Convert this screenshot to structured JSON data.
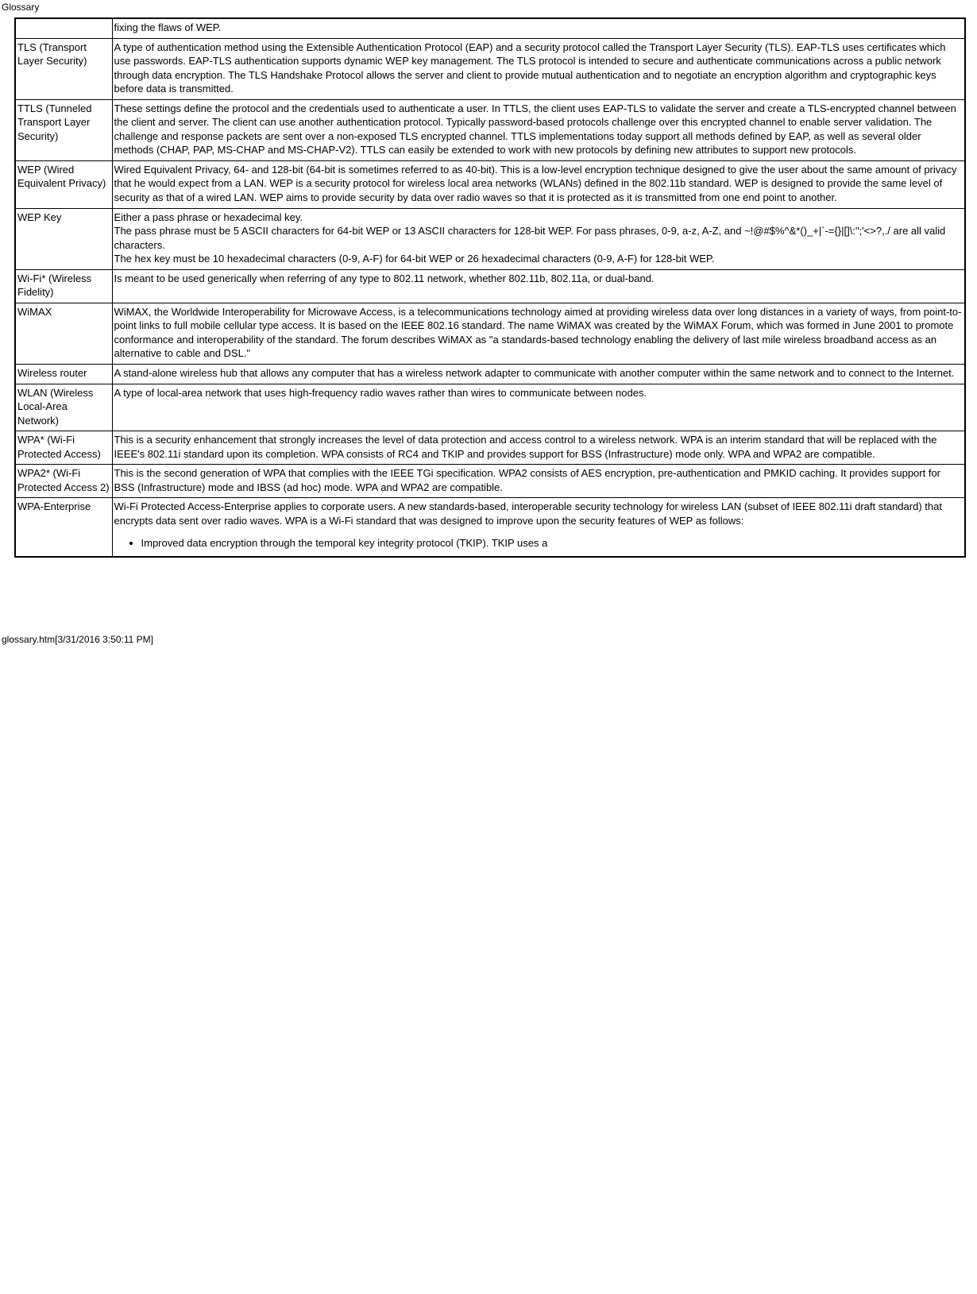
{
  "pageTitle": "Glossary",
  "footer": "glossary.htm[3/31/2016 3:50:11 PM]",
  "firstRow": {
    "term": "",
    "def": " fixing the flaws of WEP."
  },
  "rows": [
    {
      "term": "TLS (Transport Layer Security)",
      "def": "A type of authentication method using the Extensible Authentication Protocol (EAP) and a security protocol called the Transport Layer Security (TLS). EAP-TLS uses certificates which use passwords. EAP-TLS authentication supports dynamic WEP key management. The TLS protocol is intended to secure and authenticate communications across a public network through data encryption. The TLS Handshake Protocol allows the server and client to provide mutual authentication and to negotiate an encryption algorithm and cryptographic keys before data is transmitted."
    },
    {
      "term": "TTLS (Tunneled Transport Layer Security)",
      "def": "These settings define the protocol and the credentials used to authenticate a user. In TTLS, the client uses EAP-TLS to validate the server and create a TLS-encrypted channel between the client and server. The client can use another authentication protocol. Typically password-based protocols challenge over this encrypted channel to enable server validation. The challenge and response packets are sent over a non-exposed TLS encrypted channel. TTLS implementations today support all methods defined by EAP, as well as several older methods (CHAP, PAP, MS-CHAP and MS-CHAP-V2). TTLS can easily be extended to work with new protocols by defining new attributes to support new protocols."
    },
    {
      "term": "WEP (Wired Equivalent Privacy)",
      "def": "Wired Equivalent Privacy, 64- and 128-bit (64-bit is sometimes referred to as 40-bit). This is a low-level encryption technique designed to give the user about the same amount of privacy that he would expect from a LAN. WEP is a security protocol for wireless local area networks (WLANs) defined in the 802.11b standard. WEP is designed to provide the same level of security as that of a wired LAN. WEP aims to provide security by data over radio waves so that it is protected as it is transmitted from one end point to another."
    },
    {
      "term": "WEP Key",
      "def": "Either a pass phrase or hexadecimal key.\nThe pass phrase must be 5 ASCII characters for 64-bit WEP or 13 ASCII characters for 128-bit WEP. For pass phrases, 0-9, a-z, A-Z, and ~!@#$%^&*()_+|`-={}|[]\\:\";'<>?,./ are all valid characters.\nThe hex key must be 10 hexadecimal characters (0-9, A-F) for 64-bit WEP or 26 hexadecimal characters (0-9, A-F) for 128-bit WEP."
    },
    {
      "term": "Wi-Fi* (Wireless Fidelity)",
      "def": "Is meant to be used generically when referring of any type to 802.11 network, whether 802.11b, 802.11a, or dual-band."
    },
    {
      "term": "WiMAX",
      "def": "WiMAX, the Worldwide Interoperability for Microwave Access, is a telecommunications technology aimed at providing wireless data over long distances in a variety of ways, from point-to-point links to full mobile cellular type access. It is based on the IEEE 802.16 standard. The name WiMAX was created by the WiMAX Forum, which was formed in June 2001 to promote conformance and interoperability of the standard. The forum describes WiMAX as \"a standards-based technology enabling the delivery of last mile wireless broadband access as an alternative to cable and DSL.\""
    },
    {
      "term": "Wireless router",
      "def": "A stand-alone wireless hub that allows any computer that has a wireless network adapter to communicate with another computer within the same network and to connect to the Internet."
    },
    {
      "term": "WLAN (Wireless Local-Area Network)",
      "def": "A type of local-area network that uses high-frequency radio waves rather than wires to communicate between nodes."
    },
    {
      "term": "WPA* (Wi-Fi Protected Access)",
      "def": "This is a security enhancement that strongly increases the level of data protection and access control to a wireless network. WPA is an interim standard that will be replaced with the IEEE's 802.11i standard upon its completion. WPA consists of RC4 and TKIP and provides support for BSS (Infrastructure) mode only. WPA and WPA2 are compatible."
    },
    {
      "term": "WPA2* (Wi-Fi Protected Access 2)",
      "def": "This is the second generation of WPA that complies with the IEEE TGi specification. WPA2 consists of AES encryption, pre-authentication and PMKID caching. It provides support for BSS (Infrastructure) mode and IBSS (ad hoc) mode. WPA and WPA2 are compatible."
    }
  ],
  "lastRow": {
    "term": "WPA-Enterprise",
    "intro": "Wi-Fi Protected Access-Enterprise applies to corporate users. A new standards-based, interoperable security technology for wireless LAN (subset of IEEE 802.11i draft standard) that encrypts data sent over radio waves. WPA is a Wi-Fi standard that was designed to improve upon the security features of WEP as follows:",
    "bullets": [
      "Improved data encryption through the temporal key integrity protocol (TKIP). TKIP uses a"
    ]
  }
}
